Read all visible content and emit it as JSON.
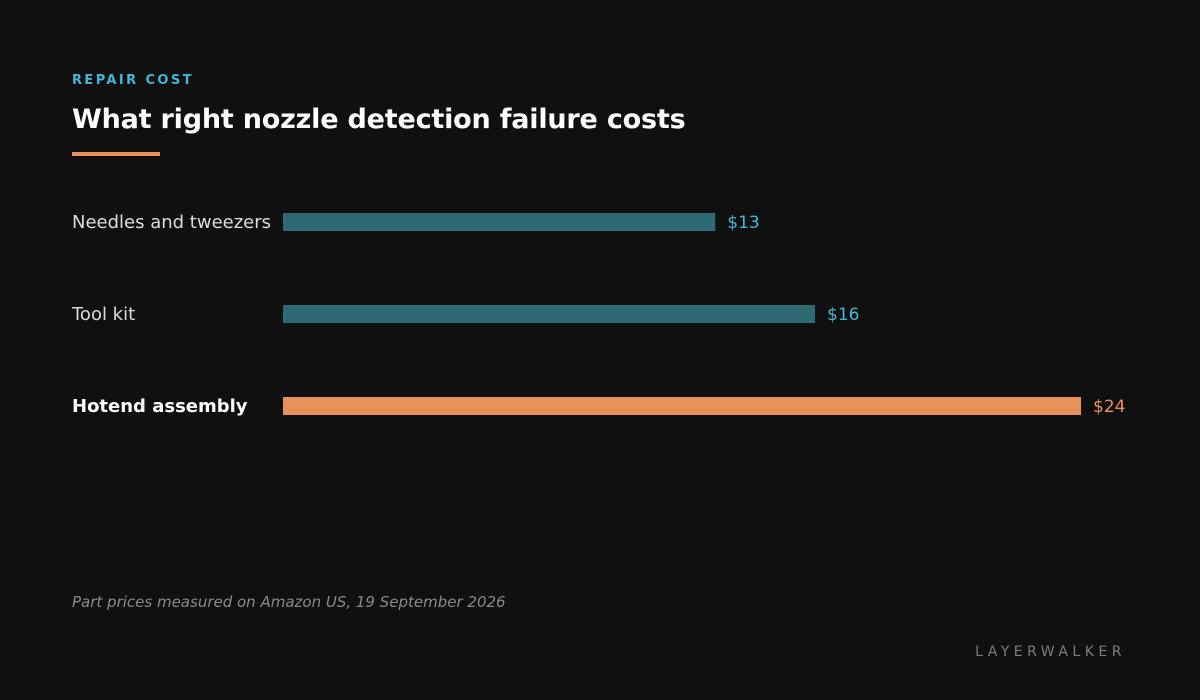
{
  "header": {
    "eyebrow": "REPAIR COST",
    "title": "What right nozzle detection failure costs"
  },
  "footer": {
    "source": "Part prices measured on Amazon US, 19 September 2026",
    "brand": "LAYERWALKER"
  },
  "colors": {
    "background": "#101010",
    "bar_default": "#2e6a74",
    "bar_highlight": "#e8925a",
    "value_default": "#3fb8d6",
    "value_highlight": "#e8925a",
    "eyebrow": "#3fb8d6"
  },
  "chart_data": {
    "type": "bar",
    "orientation": "horizontal",
    "categories": [
      "Needles and tweezers",
      "Tool kit",
      "Hotend assembly"
    ],
    "values": [
      13,
      16,
      24
    ],
    "value_labels": [
      "$13",
      "$16",
      "$24"
    ],
    "highlight_index": 2,
    "xlim": [
      0,
      24
    ],
    "grid": false,
    "legend": "none"
  }
}
